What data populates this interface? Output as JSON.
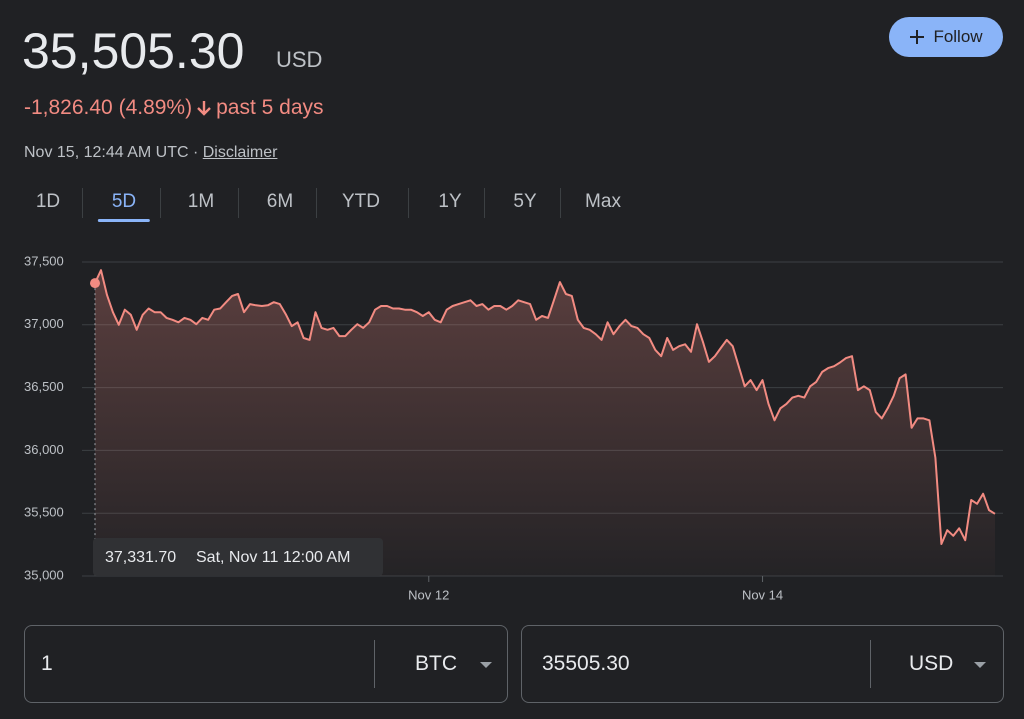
{
  "header": {
    "price": "35,505.30",
    "currency": "USD",
    "change": "-1,826.40 (4.89%)",
    "period": "past 5 days",
    "timestamp": "Nov 15, 12:44 AM UTC",
    "separator": "·",
    "disclaimer": "Disclaimer",
    "follow": "Follow"
  },
  "tabs": [
    "1D",
    "5D",
    "1M",
    "6M",
    "YTD",
    "1Y",
    "5Y",
    "Max"
  ],
  "selected_tab": 1,
  "chart_data": {
    "type": "line",
    "x": [
      0,
      1,
      2,
      3,
      4,
      5,
      6,
      7,
      8,
      9,
      10,
      11,
      12,
      13,
      14,
      15,
      16,
      17,
      18,
      19,
      20,
      21,
      22,
      23,
      24,
      25,
      26,
      27,
      28,
      29,
      30,
      31,
      32,
      33,
      34,
      35,
      36,
      37,
      38,
      39,
      40,
      41,
      42,
      43,
      44,
      45,
      46,
      47,
      48,
      49,
      50,
      51,
      52,
      53,
      54,
      55,
      56,
      57,
      58,
      59,
      60,
      61,
      62,
      63,
      64,
      65,
      66,
      67,
      68,
      69,
      70,
      71,
      72,
      73,
      74,
      75,
      76,
      77,
      78,
      79,
      80,
      81,
      82,
      83,
      84,
      85,
      86,
      87,
      88,
      89,
      90,
      91,
      92,
      93,
      94,
      95,
      96,
      97,
      98,
      99,
      100,
      101,
      102,
      103,
      104,
      105,
      106,
      107,
      108,
      109,
      110,
      111,
      112,
      113,
      114,
      115,
      116,
      117,
      118,
      119,
      120,
      121,
      122,
      123,
      124,
      125,
      126,
      127,
      128,
      129,
      130,
      131,
      132,
      133,
      134,
      135,
      136,
      137,
      138,
      139,
      140,
      141,
      142,
      143,
      144,
      145,
      146,
      147,
      148,
      149,
      150,
      151
    ],
    "series": [
      {
        "name": "BTC to USD",
        "color": "#f28b82",
        "values": [
          37331.7,
          37435,
          37240,
          37100,
          37000,
          37120,
          37080,
          36960,
          37080,
          37130,
          37100,
          37100,
          37055,
          37040,
          37020,
          37055,
          37040,
          37005,
          37055,
          37040,
          37120,
          37130,
          37180,
          37230,
          37245,
          37100,
          37165,
          37155,
          37150,
          37155,
          37180,
          37165,
          37085,
          36990,
          37020,
          36895,
          36880,
          37100,
          36975,
          36960,
          36975,
          36910,
          36910,
          36960,
          37005,
          36975,
          37020,
          37120,
          37150,
          37150,
          37130,
          37130,
          37120,
          37120,
          37100,
          37070,
          37100,
          37040,
          37020,
          37120,
          37150,
          37165,
          37180,
          37195,
          37150,
          37165,
          37120,
          37150,
          37150,
          37120,
          37150,
          37195,
          37180,
          37165,
          37040,
          37070,
          37055,
          37195,
          37340,
          37245,
          37230,
          37040,
          36975,
          36960,
          36925,
          36880,
          37020,
          36925,
          36990,
          37040,
          36990,
          36975,
          36925,
          36895,
          36800,
          36750,
          36895,
          36800,
          36830,
          36845,
          36785,
          37005,
          36865,
          36705,
          36750,
          36815,
          36880,
          36830,
          36670,
          36510,
          36560,
          36480,
          36560,
          36370,
          36240,
          36335,
          36370,
          36420,
          36435,
          36420,
          36510,
          36545,
          36625,
          36655,
          36670,
          36700,
          36735,
          36750,
          36480,
          36510,
          36480,
          36305,
          36255,
          36335,
          36435,
          36575,
          36605,
          36180,
          36255,
          36255,
          36240,
          35940,
          35255,
          35365,
          35320,
          35380,
          35285,
          35605,
          35575,
          35655,
          35525,
          35495
        ]
      }
    ],
    "xlim": [
      0,
      151
    ],
    "xticks": [
      {
        "value": 56,
        "label": "Nov 12"
      },
      {
        "value": 112,
        "label": "Nov 14"
      }
    ],
    "ylim": [
      35000,
      37500
    ],
    "yticks": [
      {
        "value": 35000,
        "label": "35,000"
      },
      {
        "value": 35500,
        "label": "35,500"
      },
      {
        "value": 36000,
        "label": "36,000"
      },
      {
        "value": 36500,
        "label": "36,500"
      },
      {
        "value": 37000,
        "label": "37,000"
      },
      {
        "value": 37500,
        "label": "37,500"
      }
    ],
    "grid": true,
    "tooltip": {
      "label": "37,331.70",
      "date": "Sat, Nov 11 12:00 AM"
    }
  },
  "converter": {
    "from_amount": "1",
    "from_currency": "BTC",
    "to_amount": "35505.30",
    "to_currency": "USD"
  }
}
